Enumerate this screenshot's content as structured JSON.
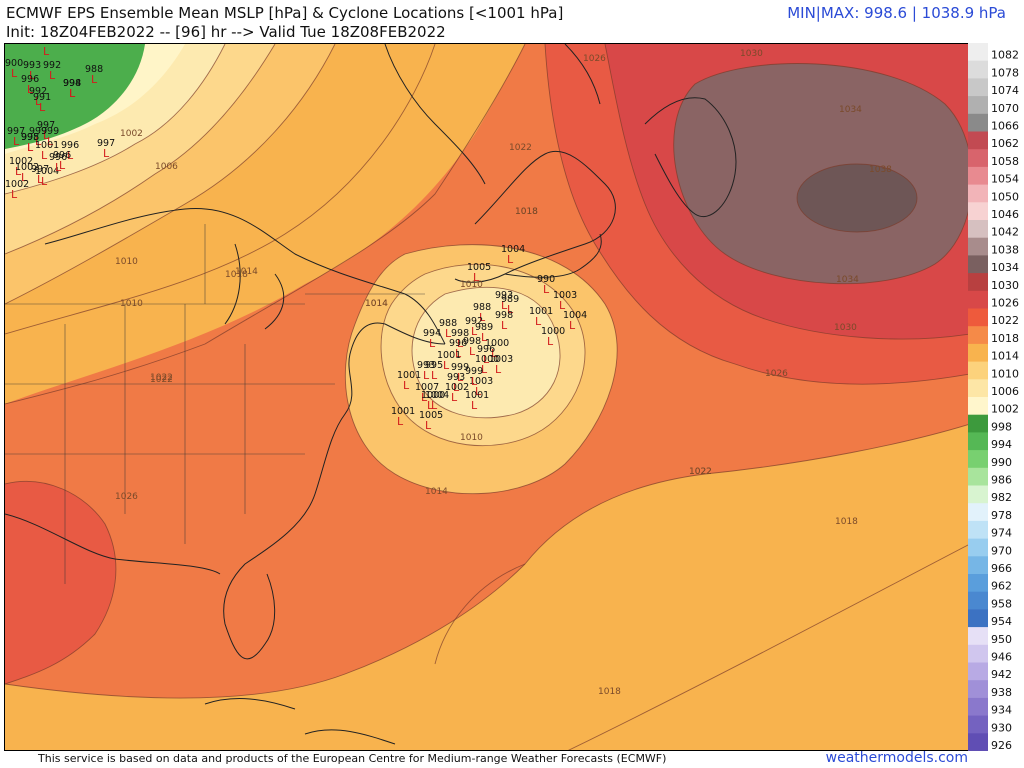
{
  "header": {
    "title_line1": "ECMWF EPS Ensemble Mean MSLP [hPa] & Cyclone Locations [<1001 hPa]",
    "title_line2": "Init: 18Z04FEB2022 -- [96] hr --> Valid Tue 18Z08FEB2022",
    "minmax": "MIN|MAX: 998.6 | 1038.9 hPa"
  },
  "footer": {
    "note": "This service is based on data and products of the European Centre for Medium-range Weather Forecasts (ECMWF)",
    "brand": "weathermodels.com"
  },
  "colors": {
    "ocean_1018": "#f8b34e",
    "zone_1022": "#f07a46",
    "zone_1026": "#e85a44",
    "zone_1030": "#d84848",
    "high_1034": "#8a6464",
    "high_1038": "#6e5656",
    "low_1014": "#fbc46a",
    "low_1010": "#fdd88c",
    "low_1006": "#fdeab0",
    "low_1002": "#fff5c8",
    "green_998": "#4cae4c",
    "coast": "#222222",
    "cyclone_marker": "#d21d1d",
    "title_blue": "#2b4bd6"
  },
  "colorbar": [
    {
      "label": "1082",
      "color": "#eeeeee"
    },
    {
      "label": "1078",
      "color": "#dcdcdc"
    },
    {
      "label": "1074",
      "color": "#c8c8c8"
    },
    {
      "label": "1070",
      "color": "#b0b0b0"
    },
    {
      "label": "1066",
      "color": "#8a8a8a"
    },
    {
      "label": "1062",
      "color": "#c24a52"
    },
    {
      "label": "1058",
      "color": "#d8646c"
    },
    {
      "label": "1054",
      "color": "#e88a90"
    },
    {
      "label": "1050",
      "color": "#f2b4b8"
    },
    {
      "label": "1046",
      "color": "#f7d2d2"
    },
    {
      "label": "1042",
      "color": "#d6c0c0"
    },
    {
      "label": "1038",
      "color": "#a88c8c"
    },
    {
      "label": "1034",
      "color": "#7a6060"
    },
    {
      "label": "1030",
      "color": "#b84040"
    },
    {
      "label": "1026",
      "color": "#d84848"
    },
    {
      "label": "1022",
      "color": "#ee5a3c"
    },
    {
      "label": "1018",
      "color": "#f58a48"
    },
    {
      "label": "1014",
      "color": "#f8b34e"
    },
    {
      "label": "1010",
      "color": "#fcd27c"
    },
    {
      "label": "1006",
      "color": "#fde6a6"
    },
    {
      "label": "1002",
      "color": "#fff6cc"
    },
    {
      "label": "998",
      "color": "#3d9a3d"
    },
    {
      "label": "994",
      "color": "#55b855"
    },
    {
      "label": "990",
      "color": "#78d070"
    },
    {
      "label": "986",
      "color": "#a8e49c"
    },
    {
      "label": "982",
      "color": "#d8f4d0"
    },
    {
      "label": "978",
      "color": "#e2f2fb"
    },
    {
      "label": "974",
      "color": "#bfe2f6"
    },
    {
      "label": "970",
      "color": "#98cdef"
    },
    {
      "label": "966",
      "color": "#76b6e6"
    },
    {
      "label": "962",
      "color": "#5a9edc"
    },
    {
      "label": "958",
      "color": "#4a88d0"
    },
    {
      "label": "954",
      "color": "#3c72c2"
    },
    {
      "label": "950",
      "color": "#e6e0f6"
    },
    {
      "label": "946",
      "color": "#d0c6ee"
    },
    {
      "label": "942",
      "color": "#b8aae4"
    },
    {
      "label": "938",
      "color": "#a090d8"
    },
    {
      "label": "934",
      "color": "#8a78cc"
    },
    {
      "label": "930",
      "color": "#7462c0"
    },
    {
      "label": "926",
      "color": "#604eb4"
    }
  ],
  "isobar_labels": [
    "1030",
    "1026",
    "1034",
    "1038",
    "1034",
    "1030",
    "1026",
    "1022",
    "1018",
    "1022",
    "1022",
    "1018",
    "1014",
    "1010",
    "1006",
    "1002",
    "1010",
    "1014",
    "1018",
    "1022",
    "1026",
    "1014",
    "1010",
    "1010",
    "1014",
    "1018",
    "1022",
    "1018"
  ],
  "cyclones": [
    {
      "value": "900"
    },
    {
      "value": "993"
    },
    {
      "value": "992"
    },
    {
      "value": "997"
    },
    {
      "value": "988"
    },
    {
      "value": "996"
    },
    {
      "value": "998"
    },
    {
      "value": "992"
    },
    {
      "value": "994"
    },
    {
      "value": "991"
    },
    {
      "value": "997"
    },
    {
      "value": "997"
    },
    {
      "value": "995"
    },
    {
      "value": "999"
    },
    {
      "value": "998"
    },
    {
      "value": "999"
    },
    {
      "value": "996"
    },
    {
      "value": "1001"
    },
    {
      "value": "996"
    },
    {
      "value": "997"
    },
    {
      "value": "1002"
    },
    {
      "value": "1002"
    },
    {
      "value": "997"
    },
    {
      "value": "1002"
    },
    {
      "value": "1004"
    },
    {
      "value": "996"
    },
    {
      "value": "1004"
    },
    {
      "value": "1005"
    },
    {
      "value": "990"
    },
    {
      "value": "1003"
    },
    {
      "value": "993"
    },
    {
      "value": "989"
    },
    {
      "value": "988"
    },
    {
      "value": "988"
    },
    {
      "value": "1001"
    },
    {
      "value": "1004"
    },
    {
      "value": "1000"
    },
    {
      "value": "998"
    },
    {
      "value": "992"
    },
    {
      "value": "989"
    },
    {
      "value": "994"
    },
    {
      "value": "998"
    },
    {
      "value": "998"
    },
    {
      "value": "996"
    },
    {
      "value": "1000"
    },
    {
      "value": "996"
    },
    {
      "value": "1001"
    },
    {
      "value": "993"
    },
    {
      "value": "995"
    },
    {
      "value": "999"
    },
    {
      "value": "1000"
    },
    {
      "value": "1003"
    },
    {
      "value": "1001"
    },
    {
      "value": "993"
    },
    {
      "value": "1003"
    },
    {
      "value": "1001"
    },
    {
      "value": "1007"
    },
    {
      "value": "1002"
    },
    {
      "value": "1004"
    },
    {
      "value": "1000"
    },
    {
      "value": "1001"
    },
    {
      "value": "1005"
    },
    {
      "value": "999"
    }
  ]
}
